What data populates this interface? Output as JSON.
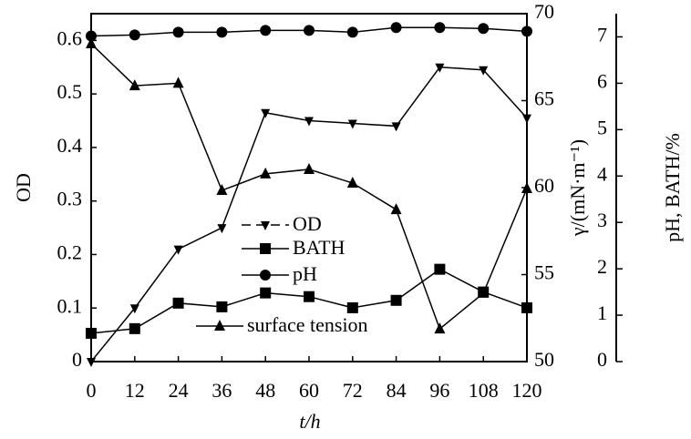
{
  "chart_data": {
    "type": "line",
    "x": [
      0,
      12,
      24,
      36,
      48,
      60,
      72,
      84,
      96,
      108,
      120
    ],
    "xlim": [
      0,
      120
    ],
    "xticks": [
      0,
      12,
      24,
      36,
      48,
      60,
      72,
      84,
      96,
      108,
      120
    ],
    "xlabel": "t/h",
    "ylabel": "OD",
    "ylim": [
      0,
      0.65
    ],
    "yticks": [
      0,
      0.1,
      0.2,
      0.3,
      0.4,
      0.5,
      0.6
    ],
    "y2label": "γ/(mN·m⁻¹)",
    "y2lim": [
      50,
      70
    ],
    "y2ticks": [
      50,
      55,
      60,
      65,
      70
    ],
    "y3label": "pH, BATH/%",
    "y3lim": [
      0,
      7.5
    ],
    "y3ticks": [
      0,
      1,
      2,
      3,
      4,
      5,
      6,
      7
    ],
    "series": [
      {
        "name": "OD",
        "color": "#000000",
        "marker": "triangle-down",
        "axis": "y",
        "values": [
          0,
          0.1,
          0.21,
          0.25,
          0.465,
          0.45,
          0.445,
          0.44,
          0.55,
          0.545,
          0.455
        ]
      },
      {
        "name": "BATH",
        "color": "#000000",
        "marker": "square",
        "axis": "y3",
        "values": [
          0.61,
          0.71,
          1.26,
          1.18,
          1.48,
          1.4,
          1.16,
          1.32,
          1.99,
          1.5,
          1.16
        ]
      },
      {
        "name": "pH",
        "color": "#000000",
        "marker": "circle",
        "axis": "y3",
        "values": [
          7.02,
          7.04,
          7.1,
          7.1,
          7.14,
          7.14,
          7.1,
          7.2,
          7.2,
          7.18,
          7.12
        ]
      },
      {
        "name": "surface tension",
        "color": "#000000",
        "marker": "triangle-up",
        "axis": "y2",
        "values": [
          68.27,
          65.86,
          66.0,
          59.84,
          60.79,
          61.05,
          60.26,
          58.74,
          51.88,
          53.93,
          59.95
        ]
      }
    ]
  }
}
